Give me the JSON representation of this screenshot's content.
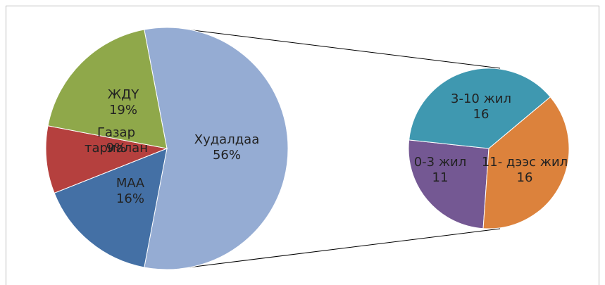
{
  "chart_data": [
    {
      "type": "pie",
      "categories": [
        "Худалдаа",
        "МАА",
        "Газар тариалан",
        "ЖДҮ"
      ],
      "values": [
        56,
        16,
        9,
        19
      ],
      "value_labels": [
        "56%",
        "16%",
        "9%",
        "19%"
      ],
      "colors": [
        "#95acd3",
        "#4470a5",
        "#b5403e",
        "#8fa84a"
      ]
    },
    {
      "type": "pie",
      "categories": [
        "0-3 жил",
        "3-10 жил",
        "11- дээс жил"
      ],
      "values": [
        11,
        16,
        16
      ],
      "colors": [
        "#745893",
        "#3f98b0",
        "#dc823c"
      ]
    }
  ]
}
